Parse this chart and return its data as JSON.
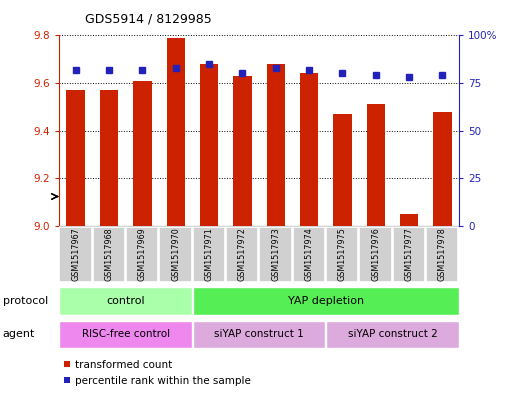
{
  "title": "GDS5914 / 8129985",
  "samples": [
    "GSM1517967",
    "GSM1517968",
    "GSM1517969",
    "GSM1517970",
    "GSM1517971",
    "GSM1517972",
    "GSM1517973",
    "GSM1517974",
    "GSM1517975",
    "GSM1517976",
    "GSM1517977",
    "GSM1517978"
  ],
  "transformed_count": [
    9.57,
    9.57,
    9.61,
    9.79,
    9.68,
    9.63,
    9.68,
    9.64,
    9.47,
    9.51,
    9.05,
    9.48
  ],
  "percentile_rank": [
    82,
    82,
    82,
    83,
    85,
    80,
    83,
    82,
    80,
    79,
    78,
    79
  ],
  "ylim_left": [
    9.0,
    9.8
  ],
  "ylim_right": [
    0,
    100
  ],
  "yticks_left": [
    9.0,
    9.2,
    9.4,
    9.6,
    9.8
  ],
  "yticks_right": [
    0,
    25,
    50,
    75,
    100
  ],
  "bar_color": "#cc2200",
  "dot_color": "#2222bb",
  "bg_color": "#ffffff",
  "protocol_groups": [
    {
      "label": "control",
      "start": 0,
      "end": 3,
      "color": "#aaffaa"
    },
    {
      "label": "YAP depletion",
      "start": 4,
      "end": 11,
      "color": "#55ee55"
    }
  ],
  "agent_groups": [
    {
      "label": "RISC-free control",
      "start": 0,
      "end": 3,
      "color": "#ee88ee"
    },
    {
      "label": "siYAP construct 1",
      "start": 4,
      "end": 7,
      "color": "#ddaadd"
    },
    {
      "label": "siYAP construct 2",
      "start": 8,
      "end": 11,
      "color": "#ddaadd"
    }
  ],
  "legend_items": [
    {
      "label": "transformed count",
      "color": "#cc2200"
    },
    {
      "label": "percentile rank within the sample",
      "color": "#2222bb"
    }
  ],
  "protocol_label": "protocol",
  "agent_label": "agent",
  "tick_color_left": "#cc2200",
  "tick_color_right": "#2222bb"
}
